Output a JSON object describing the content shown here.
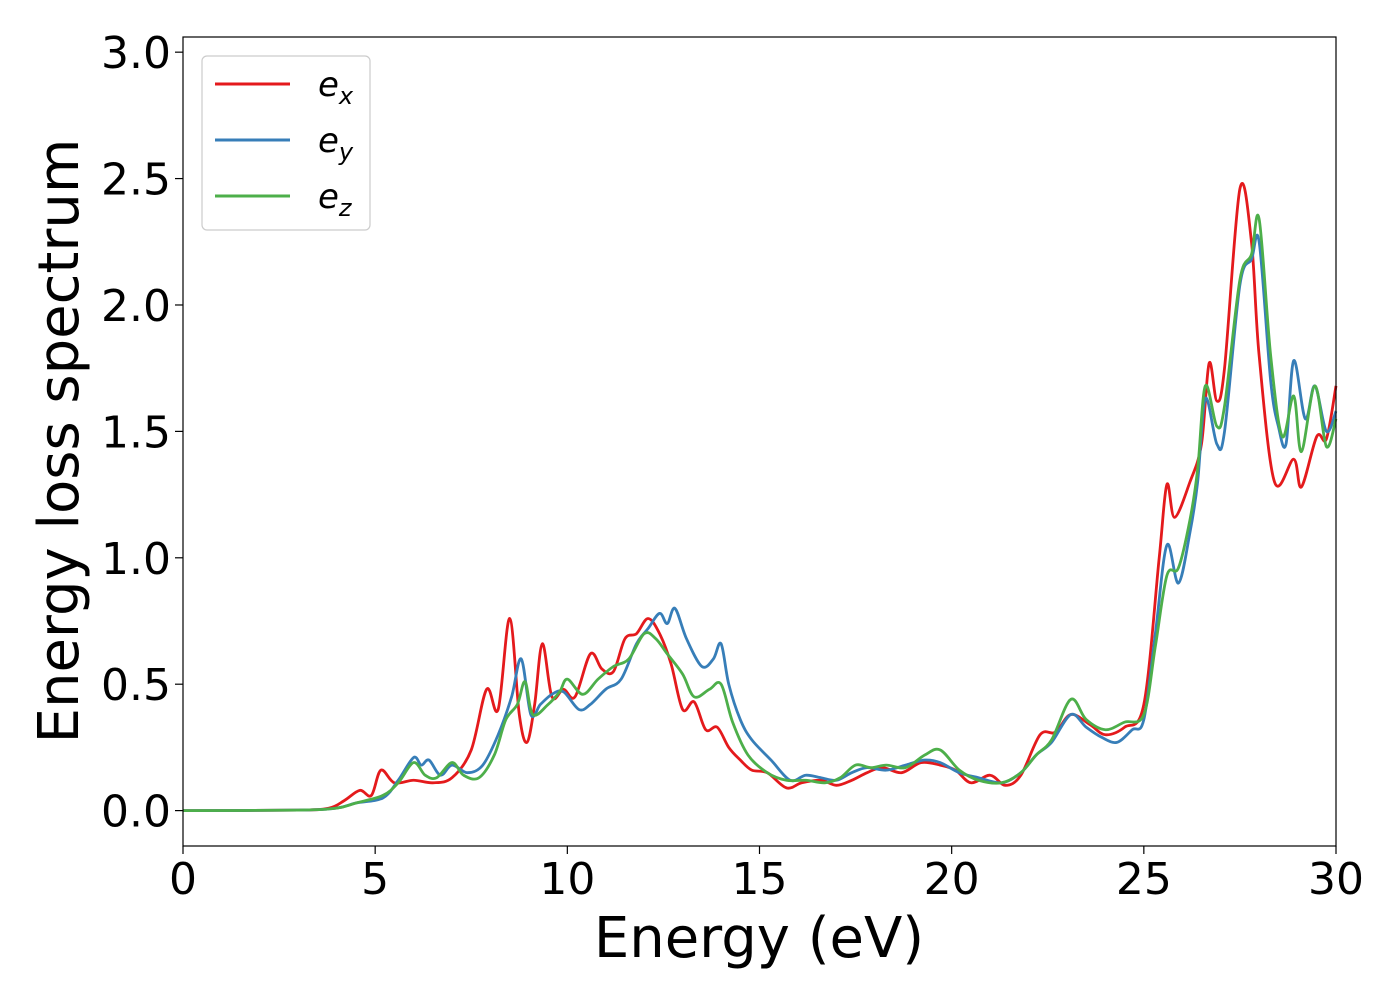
{
  "chart_data": {
    "type": "line",
    "xlabel": "Energy (eV)",
    "ylabel": "Energy loss spectrum",
    "xlim": [
      0,
      30
    ],
    "ylim": [
      -0.14,
      3.06
    ],
    "xticks": [
      0,
      5,
      10,
      15,
      20,
      25,
      30
    ],
    "yticks": [
      0.0,
      0.5,
      1.0,
      1.5,
      2.0,
      2.5,
      3.0
    ],
    "xtick_labels": [
      "0",
      "5",
      "10",
      "15",
      "20",
      "25",
      "30"
    ],
    "ytick_labels": [
      "0.0",
      "0.5",
      "1.0",
      "1.5",
      "2.0",
      "2.5",
      "3.0"
    ],
    "grid": false,
    "legend_position": "top-left",
    "series": [
      {
        "name": "e_x",
        "label_base": "e",
        "label_sub": "x",
        "color": "#e41a1c",
        "points": [
          [
            0,
            0
          ],
          [
            3,
            0.002
          ],
          [
            3.8,
            0.01
          ],
          [
            4.2,
            0.04
          ],
          [
            4.6,
            0.08
          ],
          [
            4.9,
            0.06
          ],
          [
            5.15,
            0.16
          ],
          [
            5.5,
            0.11
          ],
          [
            6,
            0.12
          ],
          [
            6.5,
            0.11
          ],
          [
            7,
            0.13
          ],
          [
            7.5,
            0.24
          ],
          [
            7.9,
            0.48
          ],
          [
            8.2,
            0.4
          ],
          [
            8.5,
            0.76
          ],
          [
            8.75,
            0.38
          ],
          [
            8.95,
            0.27
          ],
          [
            9.15,
            0.42
          ],
          [
            9.35,
            0.66
          ],
          [
            9.6,
            0.45
          ],
          [
            9.9,
            0.48
          ],
          [
            10.2,
            0.45
          ],
          [
            10.6,
            0.62
          ],
          [
            10.9,
            0.56
          ],
          [
            11.2,
            0.55
          ],
          [
            11.5,
            0.68
          ],
          [
            11.8,
            0.7
          ],
          [
            12.1,
            0.76
          ],
          [
            12.4,
            0.7
          ],
          [
            12.7,
            0.58
          ],
          [
            13,
            0.4
          ],
          [
            13.3,
            0.43
          ],
          [
            13.6,
            0.32
          ],
          [
            13.9,
            0.33
          ],
          [
            14.2,
            0.25
          ],
          [
            14.5,
            0.2
          ],
          [
            14.8,
            0.16
          ],
          [
            15.2,
            0.15
          ],
          [
            15.7,
            0.09
          ],
          [
            16.1,
            0.11
          ],
          [
            16.6,
            0.12
          ],
          [
            17,
            0.1
          ],
          [
            17.4,
            0.12
          ],
          [
            17.8,
            0.15
          ],
          [
            18.2,
            0.17
          ],
          [
            18.7,
            0.15
          ],
          [
            19.2,
            0.19
          ],
          [
            19.7,
            0.18
          ],
          [
            20.1,
            0.16
          ],
          [
            20.5,
            0.11
          ],
          [
            21,
            0.14
          ],
          [
            21.4,
            0.1
          ],
          [
            21.8,
            0.14
          ],
          [
            22.3,
            0.3
          ],
          [
            22.7,
            0.31
          ],
          [
            23.1,
            0.38
          ],
          [
            23.6,
            0.34
          ],
          [
            24,
            0.3
          ],
          [
            24.5,
            0.33
          ],
          [
            25,
            0.42
          ],
          [
            25.4,
            1.0
          ],
          [
            25.6,
            1.29
          ],
          [
            25.8,
            1.16
          ],
          [
            26.2,
            1.3
          ],
          [
            26.5,
            1.45
          ],
          [
            26.7,
            1.77
          ],
          [
            26.9,
            1.62
          ],
          [
            27.1,
            1.75
          ],
          [
            27.5,
            2.46
          ],
          [
            27.8,
            2.25
          ],
          [
            28,
            1.8
          ],
          [
            28.4,
            1.3
          ],
          [
            28.9,
            1.39
          ],
          [
            29.1,
            1.28
          ],
          [
            29.5,
            1.48
          ],
          [
            29.75,
            1.47
          ],
          [
            30,
            1.68
          ]
        ]
      },
      {
        "name": "e_y",
        "label_base": "e",
        "label_sub": "y",
        "color": "#377eb8",
        "points": [
          [
            0,
            0
          ],
          [
            3,
            0.002
          ],
          [
            4,
            0.01
          ],
          [
            4.5,
            0.03
          ],
          [
            5.2,
            0.05
          ],
          [
            5.6,
            0.12
          ],
          [
            6,
            0.21
          ],
          [
            6.2,
            0.18
          ],
          [
            6.4,
            0.2
          ],
          [
            6.7,
            0.14
          ],
          [
            7,
            0.18
          ],
          [
            7.4,
            0.15
          ],
          [
            7.8,
            0.18
          ],
          [
            8.2,
            0.3
          ],
          [
            8.55,
            0.45
          ],
          [
            8.8,
            0.6
          ],
          [
            9.05,
            0.38
          ],
          [
            9.3,
            0.42
          ],
          [
            9.6,
            0.46
          ],
          [
            9.9,
            0.47
          ],
          [
            10.3,
            0.4
          ],
          [
            10.6,
            0.42
          ],
          [
            11,
            0.48
          ],
          [
            11.4,
            0.52
          ],
          [
            11.8,
            0.66
          ],
          [
            12.1,
            0.72
          ],
          [
            12.4,
            0.78
          ],
          [
            12.6,
            0.74
          ],
          [
            12.8,
            0.8
          ],
          [
            13.1,
            0.68
          ],
          [
            13.5,
            0.57
          ],
          [
            13.8,
            0.6
          ],
          [
            14,
            0.66
          ],
          [
            14.2,
            0.5
          ],
          [
            14.5,
            0.36
          ],
          [
            14.8,
            0.28
          ],
          [
            15.3,
            0.2
          ],
          [
            15.8,
            0.12
          ],
          [
            16.2,
            0.14
          ],
          [
            16.6,
            0.13
          ],
          [
            17,
            0.12
          ],
          [
            17.4,
            0.15
          ],
          [
            17.8,
            0.17
          ],
          [
            18.3,
            0.16
          ],
          [
            18.8,
            0.18
          ],
          [
            19.3,
            0.2
          ],
          [
            19.7,
            0.19
          ],
          [
            20.2,
            0.15
          ],
          [
            20.7,
            0.13
          ],
          [
            21.3,
            0.11
          ],
          [
            21.8,
            0.15
          ],
          [
            22.2,
            0.22
          ],
          [
            22.6,
            0.27
          ],
          [
            23.1,
            0.38
          ],
          [
            23.5,
            0.33
          ],
          [
            23.9,
            0.29
          ],
          [
            24.3,
            0.27
          ],
          [
            24.7,
            0.32
          ],
          [
            25,
            0.36
          ],
          [
            25.3,
            0.7
          ],
          [
            25.6,
            1.05
          ],
          [
            25.9,
            0.9
          ],
          [
            26.2,
            1.1
          ],
          [
            26.4,
            1.3
          ],
          [
            26.6,
            1.63
          ],
          [
            26.9,
            1.45
          ],
          [
            27.1,
            1.5
          ],
          [
            27.5,
            2.08
          ],
          [
            27.8,
            2.18
          ],
          [
            28,
            2.25
          ],
          [
            28.3,
            1.7
          ],
          [
            28.5,
            1.52
          ],
          [
            28.7,
            1.45
          ],
          [
            28.9,
            1.78
          ],
          [
            29.2,
            1.55
          ],
          [
            29.45,
            1.68
          ],
          [
            29.75,
            1.5
          ],
          [
            30,
            1.58
          ]
        ]
      },
      {
        "name": "e_z",
        "label_base": "e",
        "label_sub": "z",
        "color": "#4daf4a",
        "points": [
          [
            0,
            0
          ],
          [
            3,
            0.002
          ],
          [
            4,
            0.01
          ],
          [
            4.5,
            0.03
          ],
          [
            5.2,
            0.06
          ],
          [
            5.6,
            0.11
          ],
          [
            6,
            0.19
          ],
          [
            6.3,
            0.14
          ],
          [
            6.6,
            0.13
          ],
          [
            7,
            0.19
          ],
          [
            7.3,
            0.14
          ],
          [
            7.7,
            0.13
          ],
          [
            8.1,
            0.22
          ],
          [
            8.4,
            0.36
          ],
          [
            8.7,
            0.42
          ],
          [
            8.9,
            0.51
          ],
          [
            9.1,
            0.38
          ],
          [
            9.5,
            0.42
          ],
          [
            9.8,
            0.47
          ],
          [
            10,
            0.52
          ],
          [
            10.4,
            0.46
          ],
          [
            10.8,
            0.52
          ],
          [
            11.2,
            0.57
          ],
          [
            11.6,
            0.6
          ],
          [
            12,
            0.7
          ],
          [
            12.3,
            0.68
          ],
          [
            12.6,
            0.62
          ],
          [
            13,
            0.54
          ],
          [
            13.3,
            0.45
          ],
          [
            13.7,
            0.48
          ],
          [
            14,
            0.5
          ],
          [
            14.3,
            0.35
          ],
          [
            14.7,
            0.22
          ],
          [
            15.2,
            0.15
          ],
          [
            15.7,
            0.12
          ],
          [
            16.2,
            0.12
          ],
          [
            16.7,
            0.11
          ],
          [
            17.1,
            0.13
          ],
          [
            17.5,
            0.18
          ],
          [
            17.9,
            0.17
          ],
          [
            18.3,
            0.18
          ],
          [
            18.8,
            0.17
          ],
          [
            19.3,
            0.22
          ],
          [
            19.7,
            0.24
          ],
          [
            20.2,
            0.16
          ],
          [
            20.7,
            0.12
          ],
          [
            21.3,
            0.11
          ],
          [
            21.8,
            0.15
          ],
          [
            22.2,
            0.22
          ],
          [
            22.6,
            0.28
          ],
          [
            23.1,
            0.44
          ],
          [
            23.5,
            0.36
          ],
          [
            24,
            0.32
          ],
          [
            24.5,
            0.35
          ],
          [
            25,
            0.38
          ],
          [
            25.3,
            0.65
          ],
          [
            25.6,
            0.93
          ],
          [
            25.9,
            0.96
          ],
          [
            26.2,
            1.15
          ],
          [
            26.4,
            1.35
          ],
          [
            26.6,
            1.68
          ],
          [
            26.9,
            1.52
          ],
          [
            27.1,
            1.6
          ],
          [
            27.5,
            2.1
          ],
          [
            27.8,
            2.2
          ],
          [
            28,
            2.34
          ],
          [
            28.3,
            1.8
          ],
          [
            28.6,
            1.48
          ],
          [
            28.9,
            1.64
          ],
          [
            29.1,
            1.42
          ],
          [
            29.45,
            1.68
          ],
          [
            29.75,
            1.44
          ],
          [
            30,
            1.55
          ]
        ]
      }
    ]
  }
}
